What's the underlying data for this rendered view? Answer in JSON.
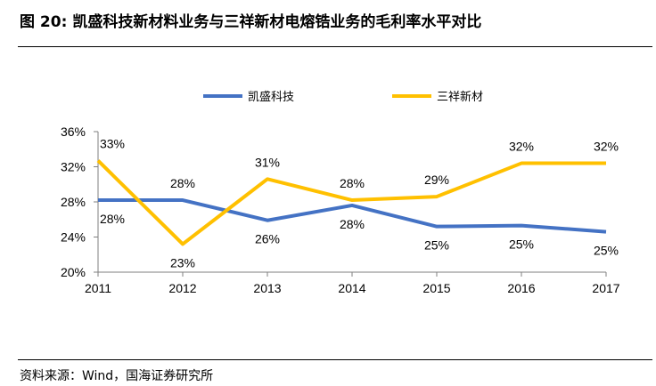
{
  "figure": {
    "number": "图 20:",
    "title": "凯盛科技新材料业务与三祥新材电熔锆业务的毛利率水平对比"
  },
  "source": "资料来源：Wind，国海证券研究所",
  "colors": {
    "series_1": "#4472C4",
    "series_2": "#FFC000",
    "axis": "#7f7f7f"
  },
  "chart_data": {
    "type": "line",
    "x": [
      "2011",
      "2012",
      "2013",
      "2014",
      "2015",
      "2016",
      "2017"
    ],
    "series": [
      {
        "name": "凯盛科技",
        "values": [
          28.2,
          28.2,
          25.9,
          27.6,
          25.2,
          25.3,
          24.6
        ],
        "labels": [
          "28%",
          "28%",
          "26%",
          "28%",
          "25%",
          "25%",
          "25%"
        ],
        "color": "#4472C4"
      },
      {
        "name": "三祥新材",
        "values": [
          32.7,
          23.2,
          30.6,
          28.2,
          28.6,
          32.4,
          32.4
        ],
        "labels": [
          "33%",
          "23%",
          "31%",
          "28%",
          "29%",
          "32%",
          "32%"
        ],
        "color": "#FFC000"
      }
    ],
    "yticks": [
      "20%",
      "24%",
      "28%",
      "32%",
      "36%"
    ],
    "ylim": [
      20,
      36
    ],
    "grid": false,
    "legend": "top"
  }
}
